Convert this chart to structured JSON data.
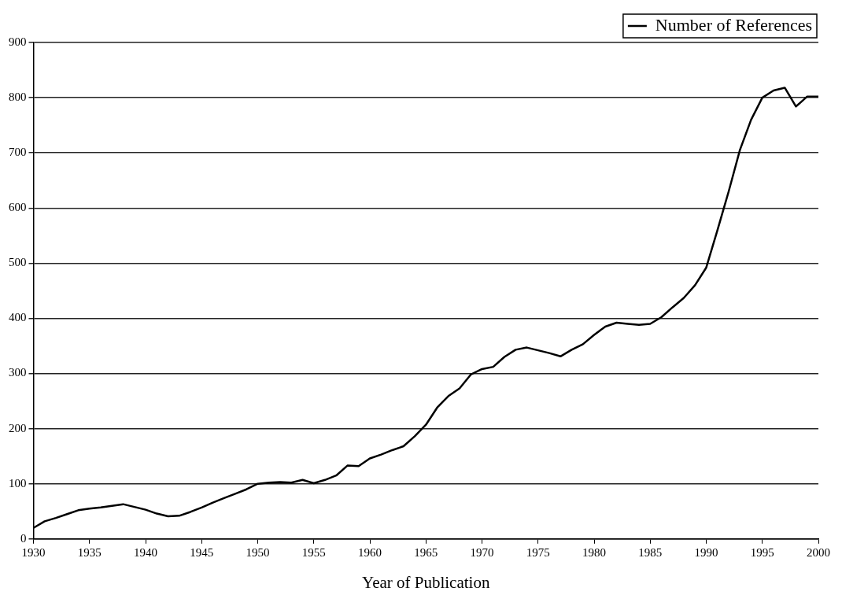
{
  "chart_data": {
    "type": "line",
    "xlabel": "Year of Publication",
    "x": [
      1930,
      1931,
      1932,
      1933,
      1934,
      1935,
      1936,
      1937,
      1938,
      1939,
      1940,
      1941,
      1942,
      1943,
      1944,
      1945,
      1946,
      1947,
      1948,
      1949,
      1950,
      1951,
      1952,
      1953,
      1954,
      1955,
      1956,
      1957,
      1958,
      1959,
      1960,
      1961,
      1962,
      1963,
      1964,
      1965,
      1966,
      1967,
      1968,
      1969,
      1970,
      1971,
      1972,
      1973,
      1974,
      1975,
      1976,
      1977,
      1978,
      1979,
      1980,
      1981,
      1982,
      1983,
      1984,
      1985,
      1986,
      1987,
      1988,
      1989,
      1990,
      1991,
      1992,
      1993,
      1994,
      1995,
      1996,
      1997,
      1998,
      1999,
      2000
    ],
    "series": [
      {
        "name": "Number of References",
        "color": "#000000",
        "values": [
          20,
          32,
          38,
          45,
          52,
          55,
          57,
          60,
          63,
          58,
          53,
          46,
          41,
          42,
          49,
          57,
          66,
          74,
          82,
          90,
          100,
          102,
          103,
          102,
          107,
          101,
          107,
          115,
          133,
          132,
          146,
          153,
          161,
          168,
          186,
          207,
          238,
          259,
          273,
          298,
          308,
          312,
          330,
          343,
          347,
          342,
          337,
          331,
          343,
          353,
          370,
          385,
          392,
          390,
          388,
          390,
          402,
          420,
          437,
          460,
          492,
          560,
          630,
          705,
          760,
          800,
          813,
          818,
          784,
          802,
          802
        ]
      }
    ],
    "xlim": [
      1930,
      2000
    ],
    "xticks": [
      1930,
      1935,
      1940,
      1945,
      1950,
      1955,
      1960,
      1965,
      1970,
      1975,
      1980,
      1985,
      1990,
      1995,
      2000
    ],
    "ylim": [
      0,
      900
    ],
    "yticks": [
      0,
      100,
      200,
      300,
      400,
      500,
      600,
      700,
      800,
      900
    ],
    "grid": "y",
    "legend": "top right",
    "marker": "none",
    "line_style": "solid"
  }
}
